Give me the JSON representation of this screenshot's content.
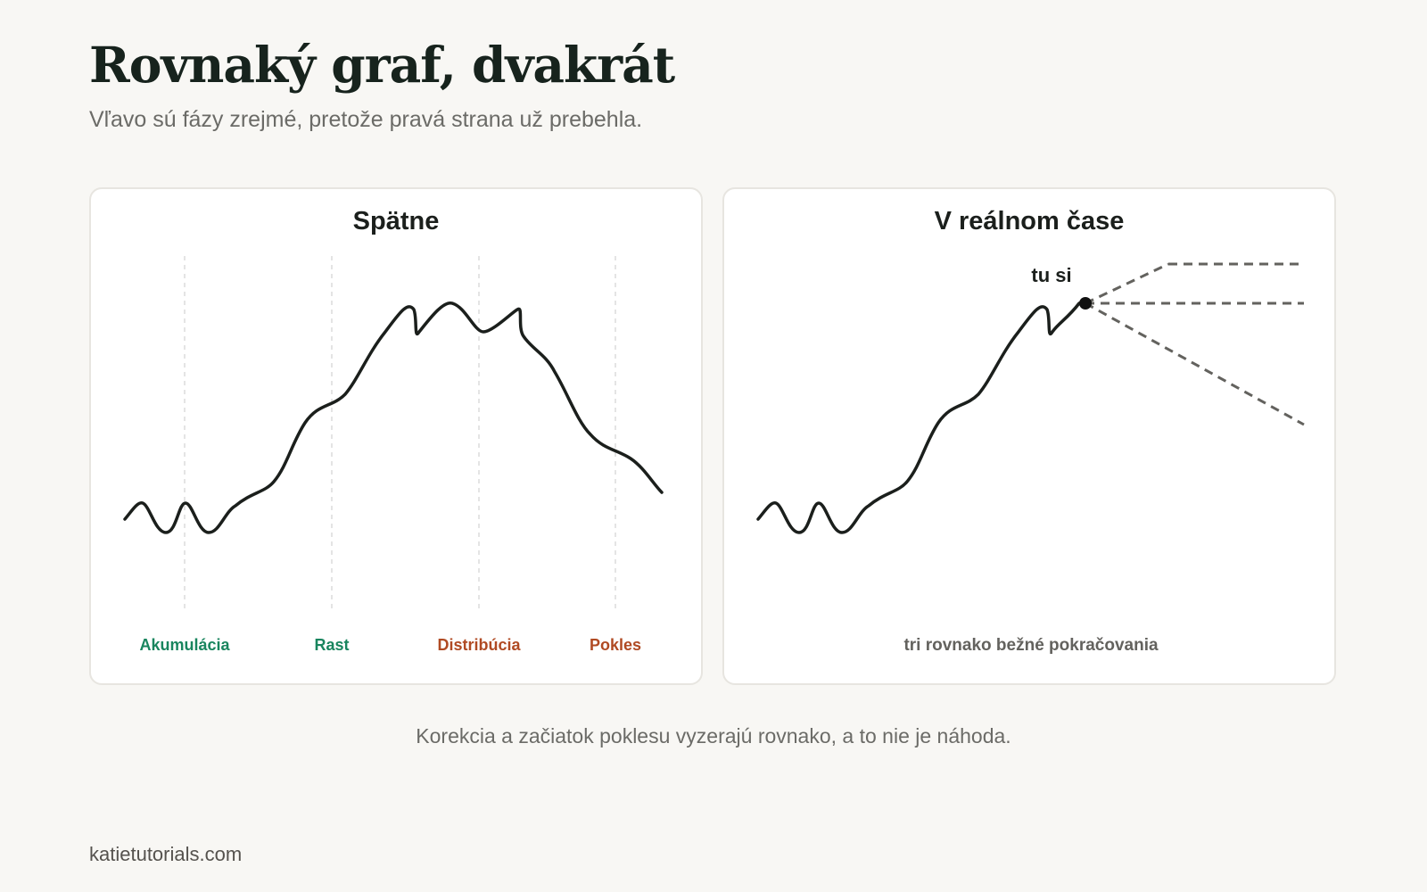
{
  "header": {
    "title": "Rovnaký graf, dvakrát",
    "subtitle": "Vľavo sú fázy zrejmé, pretože pravá strana už prebehla."
  },
  "left_panel": {
    "title": "Spätne",
    "phases": [
      {
        "label": "Akumulácia",
        "color": "#19855e"
      },
      {
        "label": "Rast",
        "color": "#19855e"
      },
      {
        "label": "Distribúcia",
        "color": "#b04a23"
      },
      {
        "label": "Pokles",
        "color": "#b04a23"
      }
    ]
  },
  "right_panel": {
    "title": "V reálnom čase",
    "marker_label": "tu si",
    "caption": "tri rovnako bežné pokračovania"
  },
  "footer": {
    "note": "Korekcia a začiatok poklesu vyzerajú rovnako, a to nie je náhoda.",
    "credit": "katietutorials.com"
  },
  "colors": {
    "line": "#1b1f1c",
    "dashed": "#63625e",
    "grid": "#dcdcdc",
    "accumulation_growth": "#19855e",
    "distribution_decline": "#b04a23"
  }
}
